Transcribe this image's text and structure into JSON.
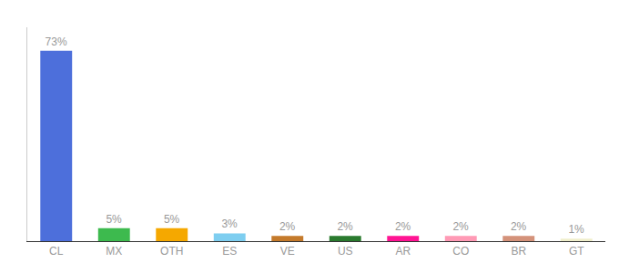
{
  "chart_data": {
    "type": "bar",
    "categories": [
      "CL",
      "MX",
      "OTH",
      "ES",
      "VE",
      "US",
      "AR",
      "CO",
      "BR",
      "GT"
    ],
    "values": [
      73,
      5,
      5,
      3,
      2,
      2,
      2,
      2,
      2,
      1
    ],
    "value_labels": [
      "73%",
      "5%",
      "5%",
      "3%",
      "2%",
      "2%",
      "2%",
      "2%",
      "2%",
      "1%"
    ],
    "data_labels": true,
    "colors": [
      "#4d6fdb",
      "#3dba4e",
      "#f5a800",
      "#7ecef0",
      "#c47a2b",
      "#2a7a2e",
      "#ff1493",
      "#ff9ab5",
      "#d4927a",
      "#f0efcc"
    ],
    "ylim": [
      0,
      82
    ],
    "tick_labels": "x",
    "grid": false
  }
}
